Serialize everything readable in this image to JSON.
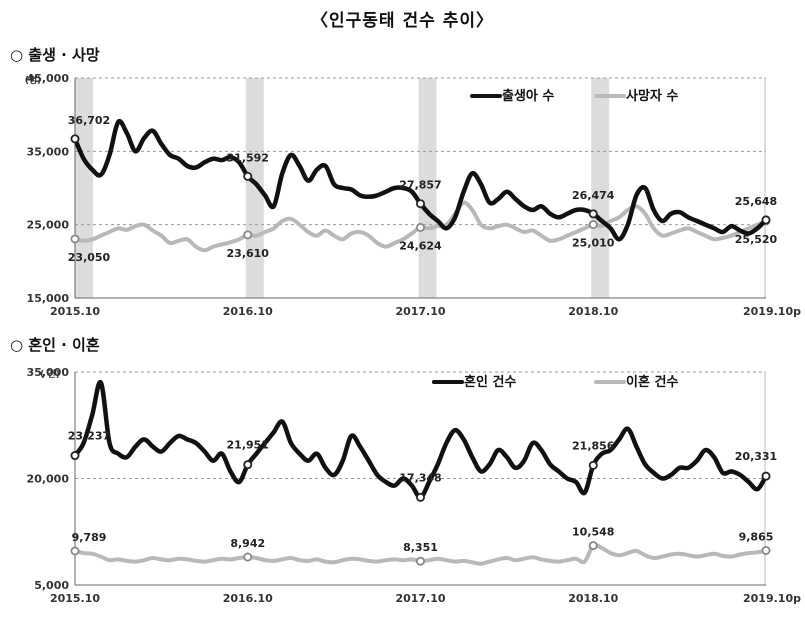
{
  "title": "〈인구동태 건수 추이〉",
  "section1": {
    "heading": "○ 출생 · 사망"
  },
  "section2": {
    "heading": "○ 혼인 · 이혼"
  },
  "colors": {
    "series_dark": "#111111",
    "series_light": "#b8b8b8",
    "band": "#dcdcdc",
    "grid": "#999999"
  },
  "chart_data": [
    {
      "type": "line",
      "unit": "(명)",
      "ylim": [
        15000,
        45000
      ],
      "yticks": [
        "15,000",
        "25,000",
        "35,000",
        "45,000"
      ],
      "xticks": [
        "2015.10",
        "2016.10",
        "2017.10",
        "2018.10",
        "2019.10p"
      ],
      "grid": true,
      "legend": "top-right",
      "series": [
        {
          "name": "출생아 수",
          "values": [
            36702,
            34000,
            32500,
            31800,
            34500,
            39000,
            37500,
            35000,
            36800,
            37800,
            36000,
            34500,
            34000,
            33000,
            32800,
            33500,
            34000,
            33800,
            34200,
            33500,
            31592,
            30500,
            29000,
            27500,
            32000,
            34500,
            33000,
            31000,
            32500,
            33000,
            30500,
            30000,
            29800,
            29000,
            28800,
            29000,
            29500,
            30000,
            30000,
            29500,
            27857,
            26500,
            25500,
            24500,
            26000,
            29500,
            32000,
            30500,
            28000,
            28500,
            29500,
            28500,
            27500,
            27000,
            27500,
            26500,
            26000,
            26500,
            27000,
            27000,
            26474,
            25500,
            24500,
            23000,
            25000,
            29000,
            30000,
            27000,
            25500,
            26500,
            26700,
            26000,
            25500,
            25000,
            24500,
            24000,
            24800,
            24200,
            23800,
            24500,
            25648
          ],
          "labels": [
            {
              "i": 0,
              "text": "36,702"
            },
            {
              "i": 20,
              "text": "31,592"
            },
            {
              "i": 40,
              "text": "27,857"
            },
            {
              "i": 60,
              "text": "26,474"
            },
            {
              "i": 80,
              "text": "25,648"
            }
          ]
        },
        {
          "name": "사망자 수",
          "values": [
            23050,
            22800,
            23000,
            23500,
            24000,
            24500,
            24300,
            24800,
            25000,
            24200,
            23500,
            22500,
            22800,
            23000,
            22000,
            21500,
            22000,
            22300,
            22600,
            23000,
            23610,
            23500,
            24000,
            24500,
            25500,
            25800,
            25000,
            24000,
            23500,
            24200,
            23500,
            23000,
            23800,
            24000,
            23500,
            22500,
            22000,
            22500,
            23000,
            23800,
            24624,
            24500,
            24800,
            25000,
            26500,
            28000,
            27000,
            25000,
            24500,
            24800,
            25000,
            24500,
            24000,
            24200,
            23500,
            22800,
            23000,
            23500,
            24000,
            24500,
            25010,
            24800,
            25500,
            26000,
            27000,
            27500,
            26500,
            24500,
            23500,
            23800,
            24200,
            24500,
            24000,
            23500,
            23000,
            23200,
            23500,
            24000,
            24500,
            25000,
            25520
          ],
          "labels": [
            {
              "i": 0,
              "text": "23,050"
            },
            {
              "i": 20,
              "text": "23,610"
            },
            {
              "i": 40,
              "text": "24,624"
            },
            {
              "i": 60,
              "text": "25,010"
            },
            {
              "i": 80,
              "text": "25,520"
            }
          ]
        }
      ]
    },
    {
      "type": "line",
      "unit": "( 건)",
      "ylim": [
        5000,
        35000
      ],
      "yticks": [
        "5,000",
        "20,000",
        "35,000"
      ],
      "xticks": [
        "2015.10",
        "2016.10",
        "2017.10",
        "2018.10",
        "2019.10p"
      ],
      "grid": true,
      "legend": "top-right",
      "series": [
        {
          "name": "혼인 건수",
          "values": [
            23237,
            25000,
            29000,
            33500,
            25000,
            23500,
            23000,
            24500,
            25500,
            24500,
            23800,
            25000,
            26000,
            25500,
            25000,
            23800,
            22500,
            23500,
            21000,
            19500,
            21951,
            23500,
            25000,
            26500,
            28000,
            25000,
            23500,
            22500,
            23500,
            21500,
            20500,
            22500,
            26000,
            24500,
            22500,
            20500,
            19500,
            19000,
            20000,
            19000,
            17348,
            19500,
            22000,
            25000,
            26800,
            25500,
            23000,
            21000,
            22000,
            24000,
            23000,
            21500,
            22500,
            25000,
            24000,
            22000,
            21000,
            20000,
            19500,
            18000,
            21856,
            23500,
            24000,
            25500,
            27000,
            24500,
            22000,
            20800,
            20000,
            20500,
            21500,
            21500,
            22500,
            24000,
            23000,
            20800,
            21000,
            20500,
            19500,
            18500,
            20331
          ],
          "labels": [
            {
              "i": 0,
              "text": "23,237"
            },
            {
              "i": 20,
              "text": "21,951"
            },
            {
              "i": 40,
              "text": "17,348"
            },
            {
              "i": 60,
              "text": "21,856"
            },
            {
              "i": 80,
              "text": "20,331"
            }
          ]
        },
        {
          "name": "이혼 건수",
          "values": [
            9789,
            9500,
            9400,
            9000,
            8500,
            8600,
            8400,
            8300,
            8500,
            8800,
            8600,
            8500,
            8700,
            8600,
            8400,
            8300,
            8500,
            8700,
            8600,
            8800,
            8942,
            8800,
            8500,
            8400,
            8600,
            8800,
            8500,
            8400,
            8600,
            8300,
            8200,
            8500,
            8700,
            8600,
            8400,
            8300,
            8500,
            8600,
            8500,
            8600,
            8351,
            8500,
            8700,
            8500,
            8300,
            8400,
            8200,
            8000,
            8300,
            8600,
            8800,
            8500,
            8700,
            8900,
            8600,
            8400,
            8300,
            8500,
            8700,
            8300,
            10548,
            10200,
            9500,
            9200,
            9500,
            9800,
            9200,
            8800,
            9000,
            9300,
            9400,
            9200,
            9000,
            9200,
            9400,
            9100,
            9000,
            9300,
            9500,
            9600,
            9865
          ],
          "labels": [
            {
              "i": 0,
              "text": "9,789"
            },
            {
              "i": 20,
              "text": "8,942"
            },
            {
              "i": 40,
              "text": "8,351"
            },
            {
              "i": 60,
              "text": "10,548"
            },
            {
              "i": 80,
              "text": "9,865"
            }
          ]
        }
      ]
    }
  ]
}
